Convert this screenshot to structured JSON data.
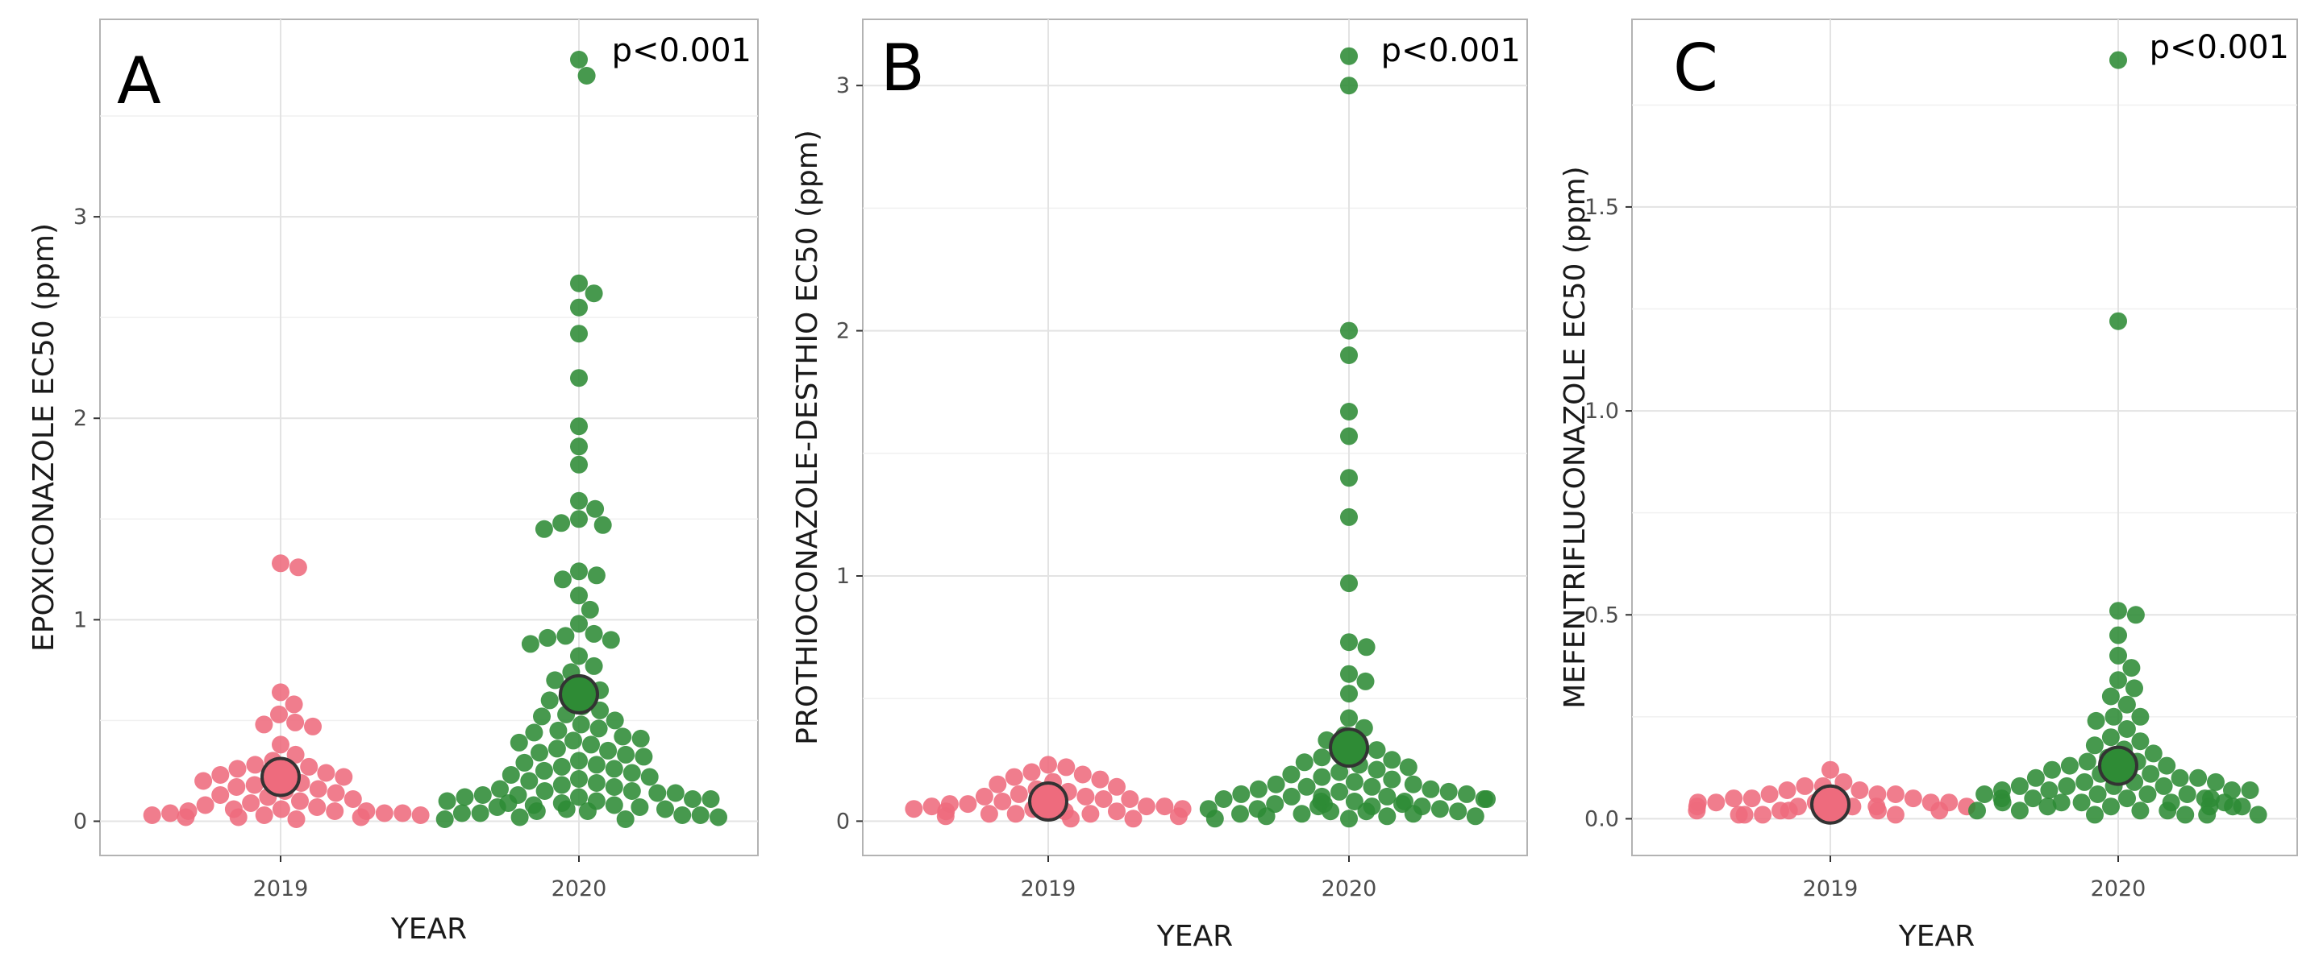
{
  "chart_data": [
    {
      "type": "scatter",
      "style": "beeswarm",
      "panel_label": "A",
      "annotation": "p<0.001",
      "xlabel": "YEAR",
      "ylabel": "EPOXICONAZOLE EC50 (ppm)",
      "categories": [
        "2019",
        "2020"
      ],
      "ylim": [
        -0.17,
        3.98
      ],
      "yticks": [
        0,
        1,
        2,
        3
      ],
      "ytick_labels": [
        "0",
        "1",
        "2",
        "3"
      ],
      "colors": {
        "2019": "#ee6b7d",
        "2020": "#2e8b35"
      },
      "means": [
        0.22,
        0.63
      ],
      "series": [
        {
          "name": "2019",
          "values": [
            1.28,
            1.26,
            0.64,
            0.58,
            0.53,
            0.49,
            0.48,
            0.47,
            0.38,
            0.33,
            0.3,
            0.28,
            0.27,
            0.26,
            0.25,
            0.24,
            0.23,
            0.22,
            0.21,
            0.2,
            0.19,
            0.18,
            0.17,
            0.16,
            0.15,
            0.14,
            0.13,
            0.12,
            0.11,
            0.1,
            0.09,
            0.08,
            0.07,
            0.06,
            0.06,
            0.05,
            0.05,
            0.05,
            0.04,
            0.04,
            0.04,
            0.03,
            0.03,
            0.03,
            0.02,
            0.02,
            0.02,
            0.01
          ]
        },
        {
          "name": "2020",
          "values": [
            3.78,
            3.7,
            2.67,
            2.62,
            2.55,
            2.42,
            2.2,
            1.96,
            1.86,
            1.77,
            1.59,
            1.55,
            1.5,
            1.48,
            1.47,
            1.45,
            1.24,
            1.22,
            1.2,
            1.12,
            1.05,
            0.98,
            0.93,
            0.92,
            0.91,
            0.9,
            0.88,
            0.82,
            0.77,
            0.74,
            0.7,
            0.67,
            0.65,
            0.62,
            0.6,
            0.57,
            0.55,
            0.53,
            0.52,
            0.5,
            0.48,
            0.46,
            0.45,
            0.44,
            0.42,
            0.41,
            0.4,
            0.39,
            0.38,
            0.36,
            0.35,
            0.34,
            0.33,
            0.32,
            0.3,
            0.29,
            0.28,
            0.27,
            0.26,
            0.25,
            0.24,
            0.23,
            0.22,
            0.21,
            0.2,
            0.19,
            0.18,
            0.17,
            0.16,
            0.15,
            0.15,
            0.14,
            0.14,
            0.13,
            0.13,
            0.12,
            0.12,
            0.11,
            0.11,
            0.1,
            0.1,
            0.09,
            0.09,
            0.08,
            0.08,
            0.07,
            0.07,
            0.06,
            0.06,
            0.05,
            0.05,
            0.04,
            0.04,
            0.03,
            0.03,
            0.02,
            0.02,
            0.01,
            0.01
          ]
        }
      ]
    },
    {
      "type": "scatter",
      "style": "beeswarm",
      "panel_label": "B",
      "annotation": "p<0.001",
      "xlabel": "YEAR",
      "ylabel": "PROTHIOCONAZOLE-DESTHIO EC50 (ppm)",
      "categories": [
        "2019",
        "2020"
      ],
      "ylim": [
        -0.14,
        3.27
      ],
      "yticks": [
        0,
        1,
        2,
        3
      ],
      "ytick_labels": [
        "0",
        "1",
        "2",
        "3"
      ],
      "colors": {
        "2019": "#ee6b7d",
        "2020": "#2e8b35"
      },
      "means": [
        0.08,
        0.3
      ],
      "series": [
        {
          "name": "2019",
          "values": [
            0.23,
            0.22,
            0.2,
            0.19,
            0.18,
            0.17,
            0.16,
            0.15,
            0.14,
            0.13,
            0.12,
            0.11,
            0.1,
            0.1,
            0.09,
            0.09,
            0.08,
            0.08,
            0.07,
            0.07,
            0.06,
            0.06,
            0.06,
            0.05,
            0.05,
            0.05,
            0.04,
            0.04,
            0.04,
            0.03,
            0.03,
            0.03,
            0.02,
            0.02,
            0.01,
            0.01
          ]
        },
        {
          "name": "2020",
          "values": [
            3.12,
            3.0,
            2.0,
            1.9,
            1.67,
            1.57,
            1.4,
            1.24,
            0.97,
            0.73,
            0.71,
            0.6,
            0.57,
            0.52,
            0.42,
            0.38,
            0.35,
            0.33,
            0.31,
            0.29,
            0.27,
            0.26,
            0.25,
            0.24,
            0.23,
            0.22,
            0.21,
            0.2,
            0.19,
            0.18,
            0.17,
            0.16,
            0.15,
            0.15,
            0.14,
            0.14,
            0.13,
            0.13,
            0.12,
            0.12,
            0.11,
            0.11,
            0.1,
            0.1,
            0.1,
            0.09,
            0.09,
            0.09,
            0.08,
            0.08,
            0.08,
            0.07,
            0.07,
            0.07,
            0.06,
            0.06,
            0.06,
            0.05,
            0.05,
            0.05,
            0.04,
            0.04,
            0.04,
            0.03,
            0.03,
            0.03,
            0.02,
            0.02,
            0.02,
            0.01,
            0.01
          ]
        }
      ]
    },
    {
      "type": "scatter",
      "style": "beeswarm",
      "panel_label": "C",
      "annotation": "p<0.001",
      "xlabel": "YEAR",
      "ylabel": "MEFENTRIFLUCONAZOLE EC50 (ppm)",
      "categories": [
        "2019",
        "2020"
      ],
      "ylim": [
        -0.09,
        1.96
      ],
      "yticks": [
        0,
        0.5,
        1,
        1.5
      ],
      "ytick_labels": [
        "0.0",
        "0.5",
        "1.0",
        "1.5"
      ],
      "colors": {
        "2019": "#ee6b7d",
        "2020": "#2e8b35"
      },
      "means": [
        0.035,
        0.13
      ],
      "series": [
        {
          "name": "2019",
          "values": [
            0.12,
            0.09,
            0.08,
            0.08,
            0.07,
            0.07,
            0.06,
            0.06,
            0.06,
            0.05,
            0.05,
            0.05,
            0.05,
            0.04,
            0.04,
            0.04,
            0.04,
            0.04,
            0.03,
            0.03,
            0.03,
            0.03,
            0.03,
            0.02,
            0.02,
            0.02,
            0.02,
            0.02,
            0.01,
            0.01,
            0.01,
            0.01,
            0.01
          ]
        },
        {
          "name": "2020",
          "values": [
            1.86,
            1.22,
            0.51,
            0.5,
            0.45,
            0.4,
            0.37,
            0.34,
            0.32,
            0.3,
            0.28,
            0.25,
            0.25,
            0.24,
            0.22,
            0.2,
            0.19,
            0.18,
            0.17,
            0.16,
            0.15,
            0.14,
            0.14,
            0.13,
            0.13,
            0.12,
            0.12,
            0.11,
            0.11,
            0.1,
            0.1,
            0.1,
            0.09,
            0.09,
            0.09,
            0.08,
            0.08,
            0.08,
            0.08,
            0.07,
            0.07,
            0.07,
            0.07,
            0.06,
            0.06,
            0.06,
            0.06,
            0.05,
            0.05,
            0.05,
            0.05,
            0.05,
            0.04,
            0.04,
            0.04,
            0.04,
            0.04,
            0.03,
            0.03,
            0.03,
            0.03,
            0.03,
            0.02,
            0.02,
            0.02,
            0.02,
            0.01,
            0.01,
            0.01,
            0.01
          ]
        }
      ]
    }
  ]
}
